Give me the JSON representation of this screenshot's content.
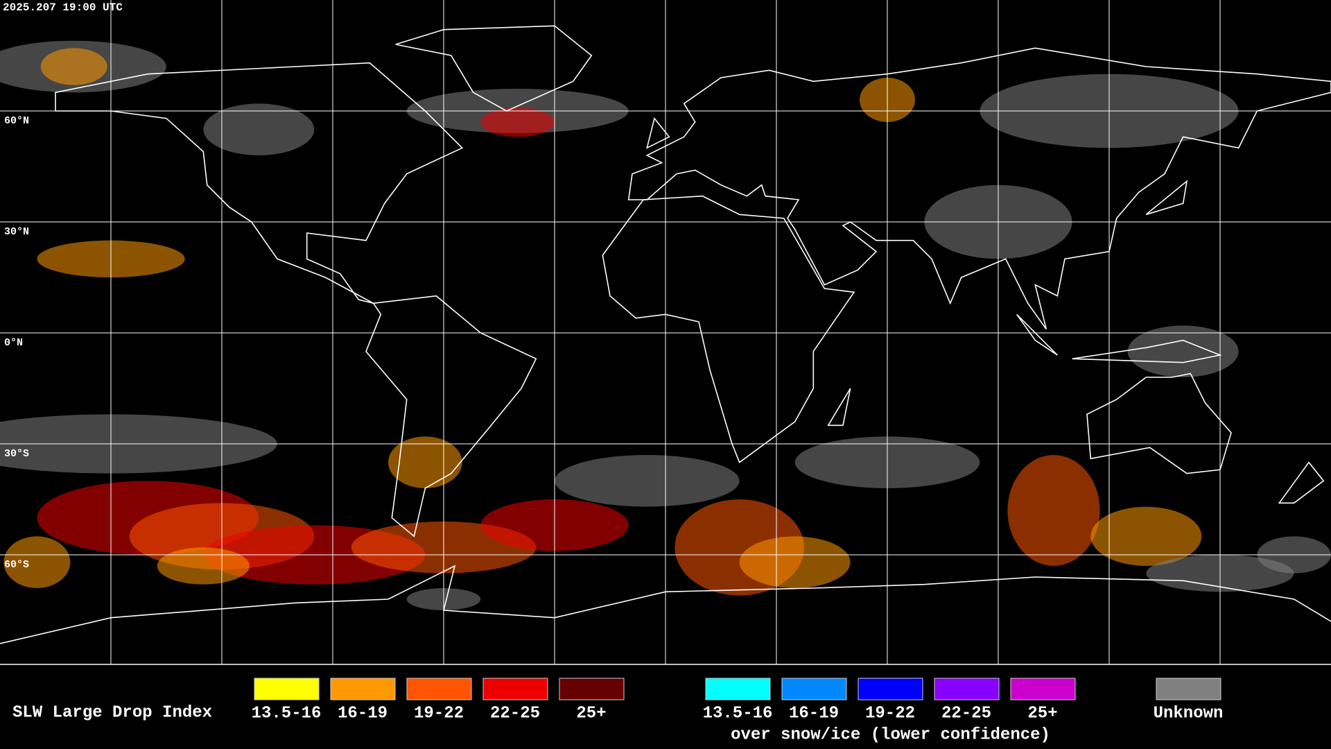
{
  "header": {
    "timestamp": "2025.207 19:00 UTC"
  },
  "map": {
    "lat_labels": [
      "60°N",
      "30°N",
      "0°N",
      "30°S",
      "60°S"
    ]
  },
  "legend": {
    "title": "SLW Large Drop Index",
    "groups": [
      {
        "items": [
          {
            "label": "13.5-16",
            "color": "#ffff00"
          },
          {
            "label": "16-19",
            "color": "#ff9900"
          },
          {
            "label": "19-22",
            "color": "#ff5500"
          },
          {
            "label": "22-25",
            "color": "#ee0000"
          },
          {
            "label": "25+",
            "color": "#660000"
          }
        ]
      },
      {
        "items": [
          {
            "label": "13.5-16",
            "color": "#00ffff"
          },
          {
            "label": "16-19",
            "color": "#0088ff"
          },
          {
            "label": "19-22",
            "color": "#0000ff"
          },
          {
            "label": "22-25",
            "color": "#8800ff"
          },
          {
            "label": "25+",
            "color": "#cc00cc"
          }
        ],
        "caption": "over snow/ice (lower confidence)"
      },
      {
        "items": [
          {
            "label": "Unknown",
            "color": "#808080"
          }
        ]
      }
    ]
  }
}
